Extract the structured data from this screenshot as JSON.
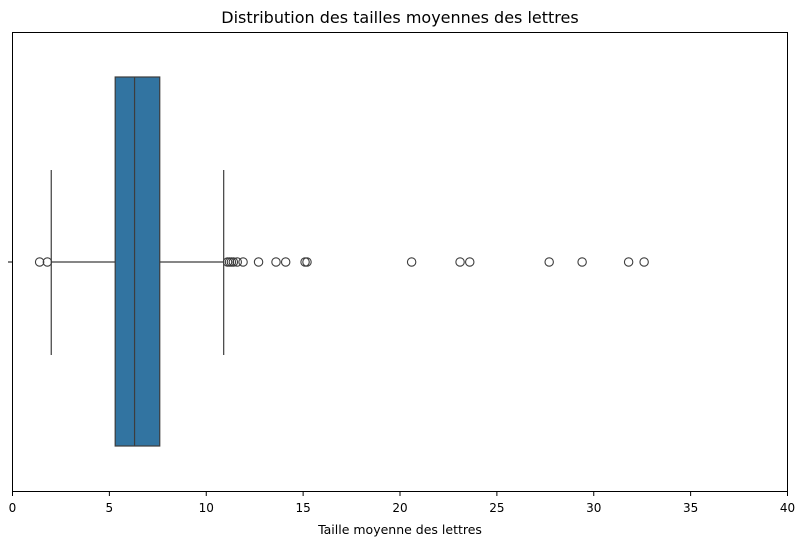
{
  "chart_data": {
    "type": "boxplot",
    "orientation": "horizontal",
    "title": "Distribution des tailles moyennes des lettres",
    "xlabel": "Taille moyenne des lettres",
    "ylabel": "",
    "xlim": [
      0,
      40
    ],
    "x_ticks": [
      0,
      5,
      10,
      15,
      20,
      25,
      30,
      35,
      40
    ],
    "grid": false,
    "box": {
      "whisker_low": 2.0,
      "q1": 5.3,
      "median": 6.3,
      "q3": 7.6,
      "whisker_high": 10.9
    },
    "outliers": [
      1.4,
      1.8,
      11.1,
      11.2,
      11.3,
      11.4,
      11.6,
      11.9,
      12.7,
      13.6,
      14.1,
      15.1,
      15.2,
      20.6,
      23.1,
      23.6,
      27.7,
      29.4,
      31.8,
      32.6
    ],
    "colors": {
      "box_fill": "#3274a1",
      "lines": "#3d3d3d",
      "outlier_edge": "#3d3d3d"
    }
  }
}
